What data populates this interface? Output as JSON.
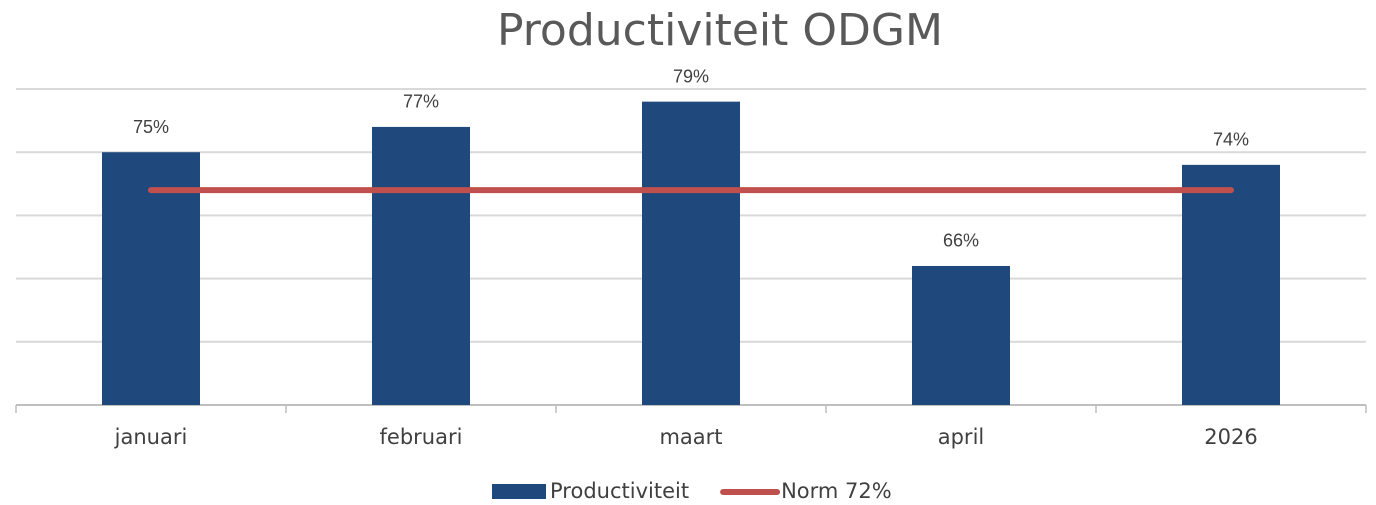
{
  "chart_data": {
    "type": "bar",
    "title": "Productiviteit ODGM",
    "categories": [
      "januari",
      "februari",
      "maart",
      "april",
      "2026"
    ],
    "series": [
      {
        "name": "Productiviteit",
        "type": "bar",
        "color": "#1f497d",
        "values": [
          75,
          77,
          79,
          66,
          74
        ],
        "value_labels": [
          "75%",
          "77%",
          "79%",
          "66%",
          "74%"
        ]
      },
      {
        "name": "Norm 72%",
        "type": "line",
        "color": "#c0504d",
        "values": [
          72,
          72,
          72,
          72,
          72
        ]
      }
    ],
    "ylim": [
      55,
      80
    ],
    "yticks": [
      55,
      60,
      65,
      70,
      75,
      80
    ],
    "grid": true,
    "legend": "bottom"
  }
}
